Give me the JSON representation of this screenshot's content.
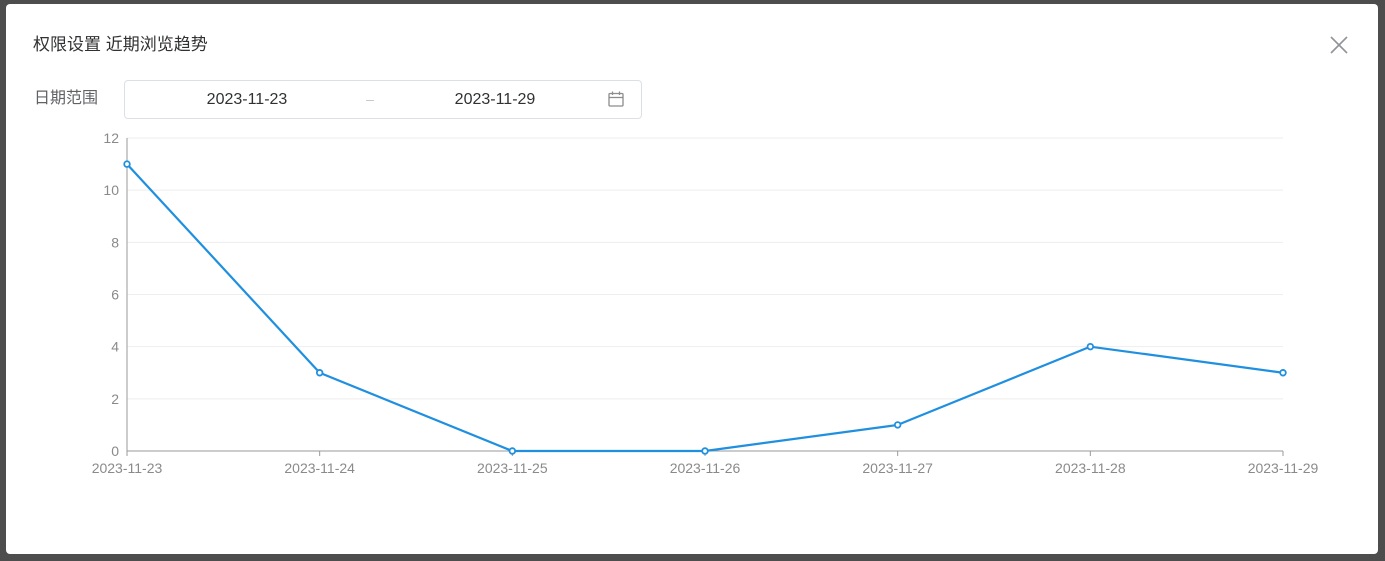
{
  "dialog": {
    "title": "权限设置 近期浏览趋势"
  },
  "filter": {
    "label": "日期范围",
    "start_date": "2023-11-23",
    "separator": "–",
    "end_date": "2023-11-29"
  },
  "icons": {
    "close": "close-icon",
    "calendar": "calendar-icon"
  },
  "colors": {
    "line": "#1f8fe0",
    "grid": "#eeeeee",
    "axis": "#9a9a9a",
    "label": "#8a8a8a"
  },
  "chart_data": {
    "type": "line",
    "categories": [
      "2023-11-23",
      "2023-11-24",
      "2023-11-25",
      "2023-11-26",
      "2023-11-27",
      "2023-11-28",
      "2023-11-29"
    ],
    "series": [
      {
        "values": [
          11,
          3,
          0,
          0,
          1,
          4,
          3
        ]
      }
    ],
    "yticks": [
      0,
      2,
      4,
      6,
      8,
      10,
      12
    ],
    "ylim": [
      0,
      12
    ],
    "grid": true,
    "legend": "none"
  }
}
